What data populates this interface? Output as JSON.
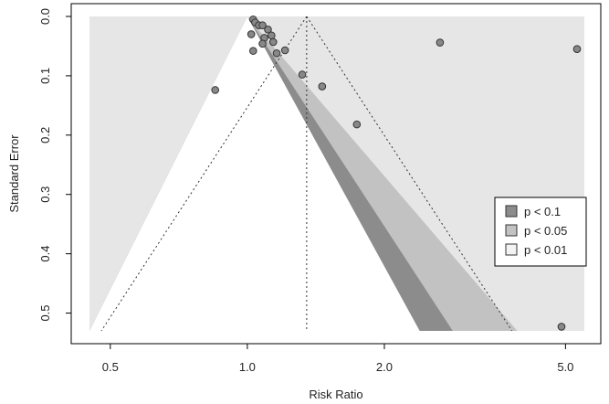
{
  "chart_data": {
    "type": "scatter",
    "subtype": "contour-enhanced funnel plot",
    "xlabel": "Risk Ratio",
    "ylabel": "Standard Error",
    "x_scale": "log",
    "xlim": [
      0.45,
      5.5
    ],
    "ylim": [
      0.53,
      0
    ],
    "y_reversed": true,
    "x_ticks": [
      0.5,
      1.0,
      2.0,
      5.0
    ],
    "x_tick_labels": [
      "0.5",
      "1.0",
      "2.0",
      "5.0"
    ],
    "y_ticks": [
      0,
      0.1,
      0.2,
      0.3,
      0.4,
      0.5
    ],
    "y_tick_labels": [
      "0.0",
      "0.1",
      "0.2",
      "0.3",
      "0.4",
      "0.5"
    ],
    "reference_value": 1.0,
    "pooled_estimate": 1.35,
    "legend": {
      "position": "right",
      "entries": [
        {
          "label": "p < 0.1",
          "color": "#8c8c8c"
        },
        {
          "label": "p < 0.05",
          "color": "#c2c2c2"
        },
        {
          "label": "p < 0.01",
          "color": "#f3f3f3"
        }
      ]
    },
    "colors": {
      "outer_region": "#e6e6e6",
      "inner_region": "#ffffff",
      "p01": "#8c8c8c",
      "p005": "#c2c2c2",
      "point_fill": "#888888",
      "point_stroke": "#333333"
    },
    "z_values": [
      1.645,
      1.96,
      2.576
    ],
    "points": [
      {
        "x": 1.03,
        "y": 0.005
      },
      {
        "x": 1.04,
        "y": 0.01
      },
      {
        "x": 1.06,
        "y": 0.015
      },
      {
        "x": 1.08,
        "y": 0.015
      },
      {
        "x": 1.11,
        "y": 0.022
      },
      {
        "x": 1.02,
        "y": 0.03
      },
      {
        "x": 1.13,
        "y": 0.032
      },
      {
        "x": 1.09,
        "y": 0.036
      },
      {
        "x": 1.14,
        "y": 0.043
      },
      {
        "x": 1.08,
        "y": 0.046
      },
      {
        "x": 1.03,
        "y": 0.058
      },
      {
        "x": 1.16,
        "y": 0.062
      },
      {
        "x": 1.21,
        "y": 0.057
      },
      {
        "x": 0.85,
        "y": 0.124
      },
      {
        "x": 1.32,
        "y": 0.098
      },
      {
        "x": 1.46,
        "y": 0.118
      },
      {
        "x": 1.74,
        "y": 0.182
      },
      {
        "x": 2.65,
        "y": 0.044
      },
      {
        "x": 5.3,
        "y": 0.055
      },
      {
        "x": 4.9,
        "y": 0.523
      }
    ]
  }
}
